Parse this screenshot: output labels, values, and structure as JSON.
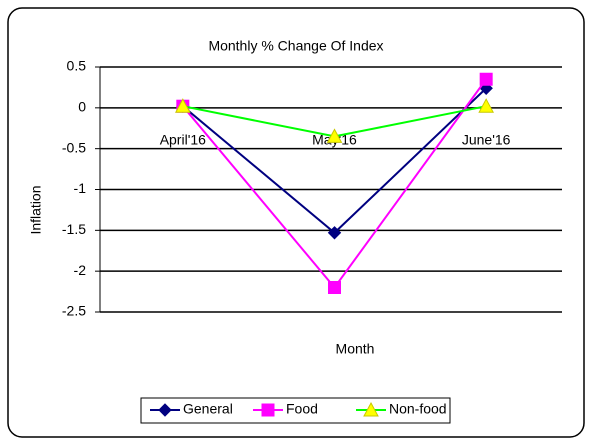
{
  "chart_data": {
    "type": "line",
    "title": "Monthly % Change Of Index",
    "x_label": "Month",
    "y_label": "Inflation",
    "categories": [
      "April'16",
      "May'16",
      "June'16"
    ],
    "series": [
      {
        "name": "General",
        "color": "#000080",
        "marker": "diamond",
        "marker_color": "#000080",
        "values": [
          0.02,
          -1.53,
          0.24
        ]
      },
      {
        "name": "Food",
        "color": "#ff00ff",
        "marker": "square",
        "marker_color": "#ff00ff",
        "values": [
          0.02,
          -2.2,
          0.35
        ]
      },
      {
        "name": "Non-food",
        "color": "#00ff00",
        "marker": "triangle",
        "marker_color": "#ffff00",
        "values": [
          0.02,
          -0.35,
          0.02
        ]
      }
    ],
    "ylim": [
      -2.5,
      0.5
    ],
    "yticks": [
      -2.5,
      -2,
      -1.5,
      -1,
      -0.5,
      0,
      0.5
    ],
    "grid": true,
    "legend": "bottom"
  }
}
